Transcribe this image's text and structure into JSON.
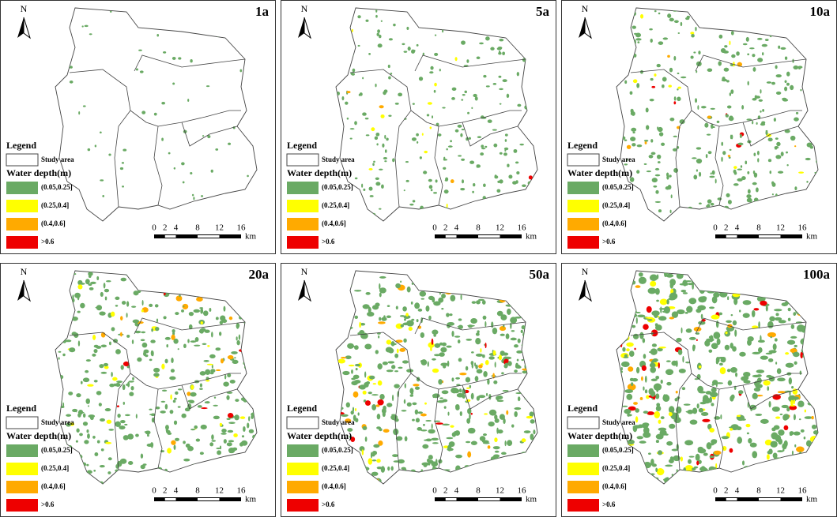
{
  "north": "N",
  "panels": [
    {
      "label": "1a"
    },
    {
      "label": "5a"
    },
    {
      "label": "10a"
    },
    {
      "label": "20a"
    },
    {
      "label": "50a"
    },
    {
      "label": "100a"
    }
  ],
  "legend": {
    "title": "Legend",
    "study_area": "Study area",
    "water_depth_title": "Water depth(m)",
    "classes": [
      {
        "label": "(0.05,0.25]",
        "color": "#6aaa64"
      },
      {
        "label": "(0.25,0.4]",
        "color": "#ffff00"
      },
      {
        "label": "(0.4,0.6]",
        "color": "#ffaa00"
      },
      {
        "label": ">0.6",
        "color": "#ee0000"
      }
    ]
  },
  "scale_bar": {
    "ticks": [
      0,
      2,
      4,
      8,
      12,
      16
    ],
    "unit": "km"
  }
}
